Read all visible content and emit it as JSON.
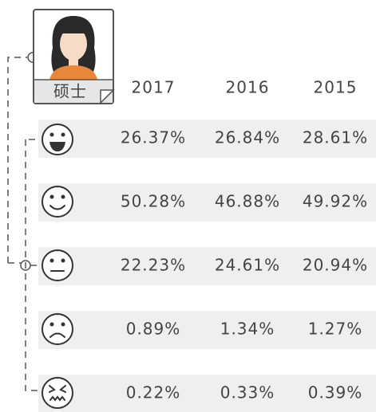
{
  "avatar_label": "硕士",
  "years": [
    "2017",
    "2016",
    "2015"
  ],
  "rows": [
    [
      "26.37%",
      "26.84%",
      "28.61%"
    ],
    [
      "50.28%",
      "46.88%",
      "49.92%"
    ],
    [
      "22.23%",
      "24.61%",
      "20.94%"
    ],
    [
      "0.89%",
      "1.34%",
      "1.27%"
    ],
    [
      "0.22%",
      "0.33%",
      "0.39%"
    ]
  ]
}
